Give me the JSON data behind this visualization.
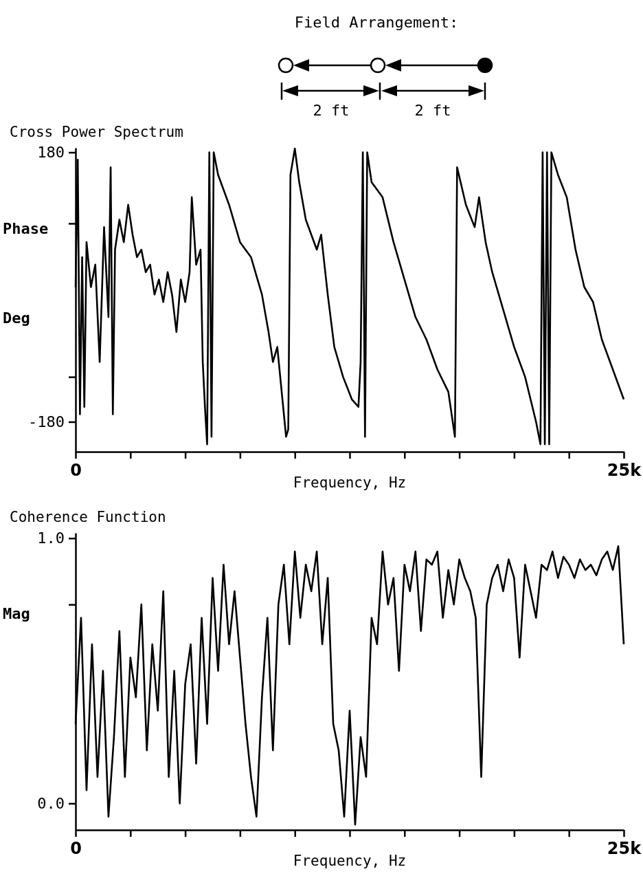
{
  "chart_data": [
    {
      "type": "line",
      "title": "Cross Power Spectrum",
      "xlabel": "Frequency, Hz",
      "ylabel": "Phase Deg",
      "annotations": [
        "Field Arrangement:",
        "2 ft",
        "2 ft"
      ],
      "xlim": [
        0,
        25000
      ],
      "ylim": [
        -220,
        186
      ],
      "xticks": [
        0,
        {
          "value": 2500,
          "label": null
        },
        {
          "value": 5000,
          "label": null
        },
        {
          "value": 7500,
          "label": null
        },
        {
          "value": 10000,
          "label": null
        },
        {
          "value": 12500,
          "label": null
        },
        {
          "value": 15000,
          "label": null
        },
        {
          "value": 17500,
          "label": null
        },
        {
          "value": 20000,
          "label": null
        },
        {
          "value": 22500,
          "label": null
        },
        {
          "value": 25000,
          "label": "25k"
        }
      ],
      "yticks": [
        180,
        {
          "value": 85,
          "label": null
        },
        {
          "value": -120,
          "label": null
        },
        -180
      ],
      "grid": false,
      "series": [
        {
          "color": "#000000",
          "x": [
            0,
            100,
            200,
            300,
            400,
            500,
            700,
            900,
            1100,
            1300,
            1500,
            1600,
            1700,
            1800,
            2000,
            2200,
            2400,
            2600,
            2800,
            3000,
            3200,
            3400,
            3600,
            3800,
            4000,
            4200,
            4400,
            4600,
            4800,
            5000,
            5200,
            5300,
            5500,
            5700,
            5800,
            5900,
            6000,
            6100,
            6200,
            6300,
            6500,
            7000,
            7500,
            8000,
            8500,
            8800,
            9000,
            9200,
            9400,
            9600,
            9700,
            9800,
            10000,
            10200,
            10500,
            11000,
            11200,
            11500,
            11800,
            12200,
            12600,
            12900,
            13000,
            13100,
            13200,
            13300,
            13500,
            14000,
            14500,
            15000,
            15500,
            16000,
            16500,
            17000,
            17300,
            17400,
            17800,
            18200,
            18400,
            18700,
            19000,
            19500,
            20000,
            20500,
            21000,
            21200,
            21300,
            21400,
            21500,
            21600,
            21700,
            22000,
            22400,
            22800,
            23200,
            23600,
            24000,
            24500,
            25000
          ],
          "values": [
            0,
            170,
            -170,
            40,
            -160,
            60,
            0,
            30,
            -100,
            80,
            -40,
            160,
            -170,
            50,
            90,
            60,
            110,
            70,
            40,
            50,
            20,
            30,
            -10,
            10,
            -20,
            20,
            -10,
            -60,
            10,
            -20,
            20,
            120,
            30,
            50,
            -100,
            -160,
            -210,
            180,
            -200,
            180,
            150,
            110,
            60,
            40,
            -10,
            -60,
            -100,
            -80,
            -140,
            -200,
            -190,
            150,
            185,
            140,
            90,
            50,
            70,
            -10,
            -80,
            -120,
            -150,
            -160,
            -100,
            180,
            -200,
            180,
            140,
            120,
            60,
            10,
            -40,
            -70,
            -110,
            -140,
            -200,
            160,
            110,
            80,
            120,
            60,
            20,
            -30,
            -80,
            -120,
            -180,
            -210,
            180,
            -210,
            180,
            -210,
            180,
            150,
            120,
            50,
            0,
            -20,
            -70,
            -110,
            -150
          ]
        }
      ]
    },
    {
      "type": "line",
      "title": "Coherence Function",
      "xlabel": "Frequency, Hz",
      "ylabel": "Mag",
      "xlim": [
        0,
        25000
      ],
      "ylim": [
        -0.1,
        1.02
      ],
      "xticks": [
        0,
        {
          "value": 2500,
          "label": null
        },
        {
          "value": 5000,
          "label": null
        },
        {
          "value": 7500,
          "label": null
        },
        {
          "value": 10000,
          "label": null
        },
        {
          "value": 12500,
          "label": null
        },
        {
          "value": 15000,
          "label": null
        },
        {
          "value": 17500,
          "label": null
        },
        {
          "value": 20000,
          "label": null
        },
        {
          "value": 22500,
          "label": null
        },
        {
          "value": 25000,
          "label": "25k"
        }
      ],
      "yticks": [
        {
          "value": 1,
          "label": "1.0"
        },
        {
          "value": 0.75,
          "label": null
        },
        {
          "value": 0,
          "label": "0.0"
        }
      ],
      "grid": false,
      "series": [
        {
          "color": "#000000",
          "x": [
            0,
            250,
            500,
            750,
            1000,
            1250,
            1500,
            1750,
            2000,
            2250,
            2500,
            2750,
            3000,
            3250,
            3500,
            3750,
            4000,
            4250,
            4500,
            4750,
            5000,
            5250,
            5500,
            5750,
            6000,
            6250,
            6500,
            6750,
            7000,
            7250,
            7500,
            7750,
            8000,
            8250,
            8500,
            8750,
            9000,
            9250,
            9500,
            9750,
            10000,
            10250,
            10500,
            10750,
            11000,
            11250,
            11500,
            11750,
            12000,
            12250,
            12500,
            12750,
            13000,
            13250,
            13500,
            13750,
            14000,
            14250,
            14500,
            14750,
            15000,
            15250,
            15500,
            15750,
            16000,
            16250,
            16500,
            16750,
            17000,
            17250,
            17500,
            17750,
            18000,
            18250,
            18500,
            18750,
            19000,
            19250,
            19500,
            19750,
            20000,
            20250,
            20500,
            20750,
            21000,
            21250,
            21500,
            21750,
            22000,
            22250,
            22500,
            22750,
            23000,
            23250,
            23500,
            23750,
            24000,
            24250,
            24500,
            24750,
            25000
          ],
          "values": [
            0.3,
            0.7,
            0.05,
            0.6,
            0.1,
            0.5,
            -0.05,
            0.25,
            0.65,
            0.1,
            0.55,
            0.4,
            0.75,
            0.2,
            0.6,
            0.35,
            0.8,
            0.1,
            0.5,
            0,
            0.45,
            0.6,
            0.15,
            0.7,
            0.3,
            0.85,
            0.5,
            0.9,
            0.6,
            0.8,
            0.55,
            0.3,
            0.1,
            -0.05,
            0.4,
            0.7,
            0.2,
            0.75,
            0.9,
            0.6,
            0.95,
            0.7,
            0.9,
            0.8,
            0.95,
            0.6,
            0.85,
            0.3,
            0.2,
            -0.05,
            0.35,
            -0.08,
            0.25,
            0.1,
            0.7,
            0.6,
            0.95,
            0.75,
            0.85,
            0.5,
            0.9,
            0.8,
            0.95,
            0.65,
            0.92,
            0.9,
            0.95,
            0.7,
            0.88,
            0.75,
            0.92,
            0.85,
            0.8,
            0.7,
            0.1,
            0.75,
            0.85,
            0.9,
            0.8,
            0.92,
            0.85,
            0.55,
            0.9,
            0.8,
            0.7,
            0.9,
            0.88,
            0.95,
            0.85,
            0.93,
            0.9,
            0.85,
            0.92,
            0.88,
            0.9,
            0.86,
            0.92,
            0.95,
            0.88,
            0.97,
            0.6
          ]
        }
      ]
    }
  ]
}
